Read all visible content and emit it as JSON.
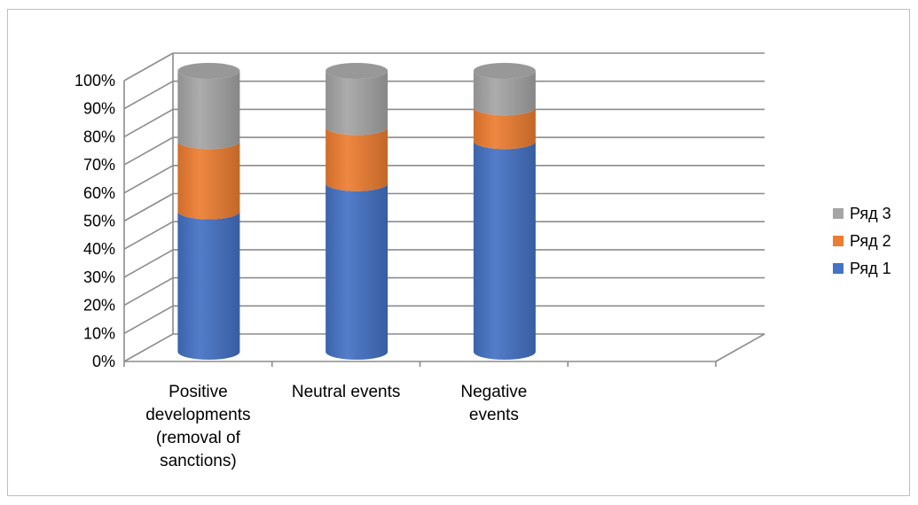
{
  "chart_data": {
    "type": "bar",
    "stacked": true,
    "normalized": true,
    "style": "3d-cylinder",
    "categories": [
      [
        "Positive",
        "developments",
        "(removal of",
        "sanctions)"
      ],
      [
        "Neutral events"
      ],
      [
        "Negative",
        "events"
      ]
    ],
    "series": [
      {
        "name": "Ряд 1",
        "color": "#4472c4",
        "values": [
          50,
          60,
          75
        ]
      },
      {
        "name": "Ряд 2",
        "color": "#ed7d31",
        "values": [
          25,
          20,
          12
        ]
      },
      {
        "name": "Ряд 3",
        "color": "#a5a5a5",
        "values": [
          25,
          20,
          13
        ]
      }
    ],
    "yticks": [
      "0%",
      "10%",
      "20%",
      "30%",
      "40%",
      "50%",
      "60%",
      "70%",
      "80%",
      "90%",
      "100%"
    ],
    "ylim": [
      0,
      100
    ],
    "grid": true,
    "legend_position": "right"
  }
}
